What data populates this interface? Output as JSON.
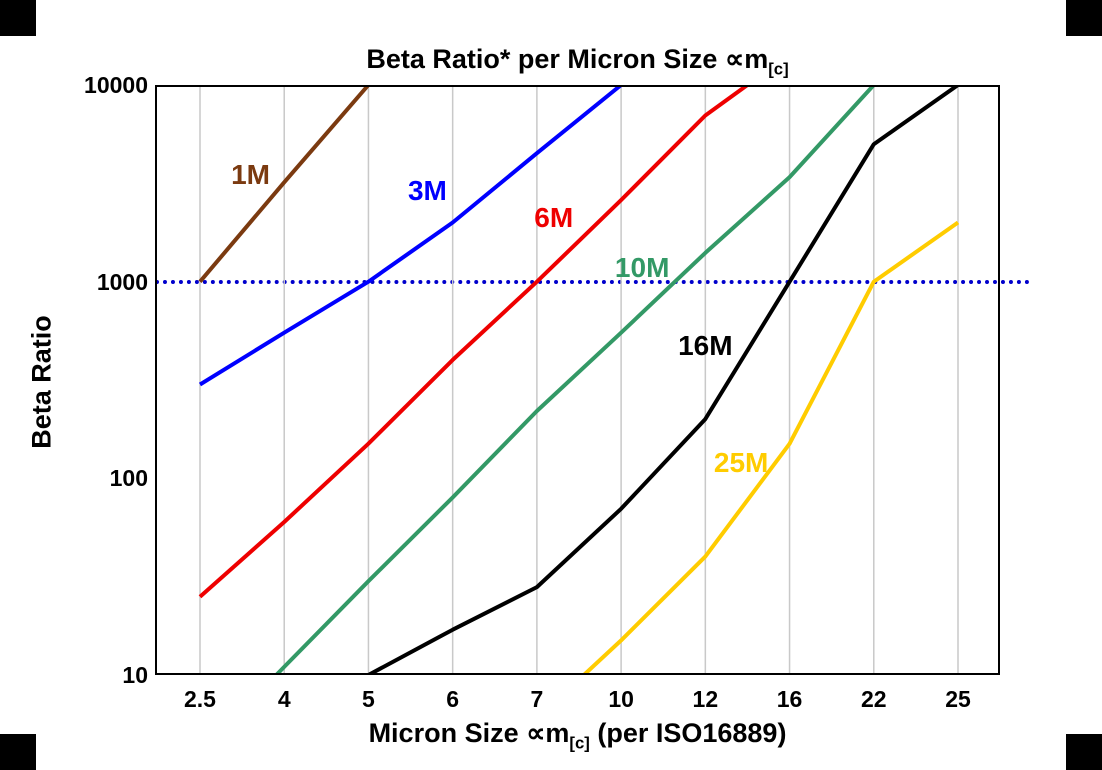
{
  "chart_data": {
    "type": "line",
    "title": {
      "text": "Beta Ratio* per Micron Size ∝m",
      "sub": "[c]"
    },
    "xlabel": {
      "text": "Micron Size ∝m",
      "sub": "[c]",
      "suffix": " (per ISO16889)"
    },
    "ylabel": "Beta Ratio",
    "y_scale": "log",
    "ylim": [
      10,
      10000
    ],
    "y_ticks": [
      10,
      100,
      1000,
      10000
    ],
    "categories": [
      2.5,
      4,
      5,
      6,
      7,
      10,
      12,
      16,
      22,
      25
    ],
    "grid": {
      "vertical": true,
      "horizontal": false,
      "color": "#c9c9c9"
    },
    "reference_line": {
      "value": 1000,
      "color": "#0000cc",
      "style": "dotted"
    },
    "series": [
      {
        "name": "1M",
        "color": "#7b3a10",
        "points": [
          [
            2.5,
            1000
          ],
          [
            4,
            3200
          ],
          [
            5,
            10000
          ],
          [
            10,
            10000
          ]
        ]
      },
      {
        "name": "3M",
        "color": "#0000ff",
        "points": [
          [
            2.5,
            300
          ],
          [
            4,
            550
          ],
          [
            5,
            1000
          ],
          [
            6,
            2000
          ],
          [
            7,
            4500
          ],
          [
            10,
            10000
          ],
          [
            16,
            10000
          ]
        ]
      },
      {
        "name": "6M",
        "color": "#ee0000",
        "points": [
          [
            2.5,
            25
          ],
          [
            4,
            60
          ],
          [
            5,
            150
          ],
          [
            6,
            400
          ],
          [
            7,
            1000
          ],
          [
            10,
            2600
          ],
          [
            12,
            7000
          ],
          [
            14,
            10000
          ],
          [
            16,
            10000
          ]
        ]
      },
      {
        "name": "10M",
        "color": "#339966",
        "points": [
          [
            2.5,
            4
          ],
          [
            4,
            11
          ],
          [
            5,
            30
          ],
          [
            6,
            80
          ],
          [
            7,
            220
          ],
          [
            10,
            550
          ],
          [
            12,
            1400
          ],
          [
            16,
            3400
          ],
          [
            22,
            10000
          ],
          [
            25,
            10000
          ]
        ]
      },
      {
        "name": "16M",
        "color": "#000000",
        "points": [
          [
            5,
            10
          ],
          [
            6,
            17
          ],
          [
            7,
            28
          ],
          [
            10,
            70
          ],
          [
            12,
            200
          ],
          [
            16,
            1000
          ],
          [
            22,
            5000
          ],
          [
            25,
            10000
          ]
        ]
      },
      {
        "name": "25M",
        "color": "#ffcc00",
        "points": [
          [
            7,
            6
          ],
          [
            10,
            15
          ],
          [
            12,
            40
          ],
          [
            16,
            150
          ],
          [
            22,
            1000
          ],
          [
            25,
            2000
          ]
        ]
      }
    ],
    "labels": [
      {
        "text": "1M",
        "color": "#7b3a10",
        "x": 3.4,
        "y": 3500
      },
      {
        "text": "3M",
        "color": "#0000ff",
        "x": 5.7,
        "y": 2900
      },
      {
        "text": "6M",
        "color": "#ee0000",
        "x": 7.6,
        "y": 2100
      },
      {
        "text": "10M",
        "color": "#339966",
        "x": 10.5,
        "y": 1180
      },
      {
        "text": "16M",
        "color": "#000000",
        "x": 12.0,
        "y": 470
      },
      {
        "text": "25M",
        "color": "#ffcc00",
        "x": 13.7,
        "y": 120
      }
    ]
  }
}
